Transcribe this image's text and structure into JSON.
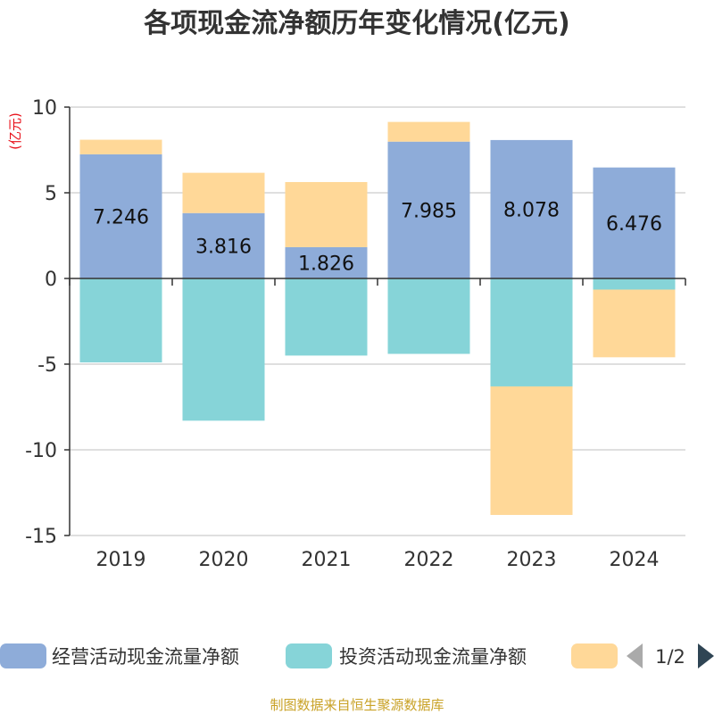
{
  "chart_data": {
    "type": "bar",
    "stacked": true,
    "title": "各项现金流净额历年变化情况(亿元)",
    "ylabel": "(亿元)",
    "xlabel": "",
    "ylim": [
      -15,
      10
    ],
    "yticks": [
      10,
      5,
      0,
      -5,
      -10,
      -15
    ],
    "grid": true,
    "categories": [
      "2019",
      "2020",
      "2021",
      "2022",
      "2023",
      "2024"
    ],
    "series": [
      {
        "name": "经营活动现金流量净额",
        "color": "#8eacd9",
        "values": [
          7.246,
          3.816,
          1.826,
          7.985,
          8.078,
          6.476
        ],
        "labels": [
          "7.246",
          "3.816",
          "1.826",
          "7.985",
          "8.078",
          "6.476"
        ]
      },
      {
        "name": "投资活动现金流量净额",
        "color": "#86d4d8",
        "values": [
          -4.9,
          -8.3,
          -4.5,
          -4.4,
          -6.3,
          -0.65
        ]
      },
      {
        "name": "",
        "color": "#ffd898",
        "values": [
          0.85,
          2.35,
          3.8,
          1.15,
          -7.5,
          -3.95
        ]
      }
    ],
    "legend": {
      "position": "bottom",
      "page": "1/2"
    },
    "source": "制图数据来自恒生聚源数据库"
  }
}
